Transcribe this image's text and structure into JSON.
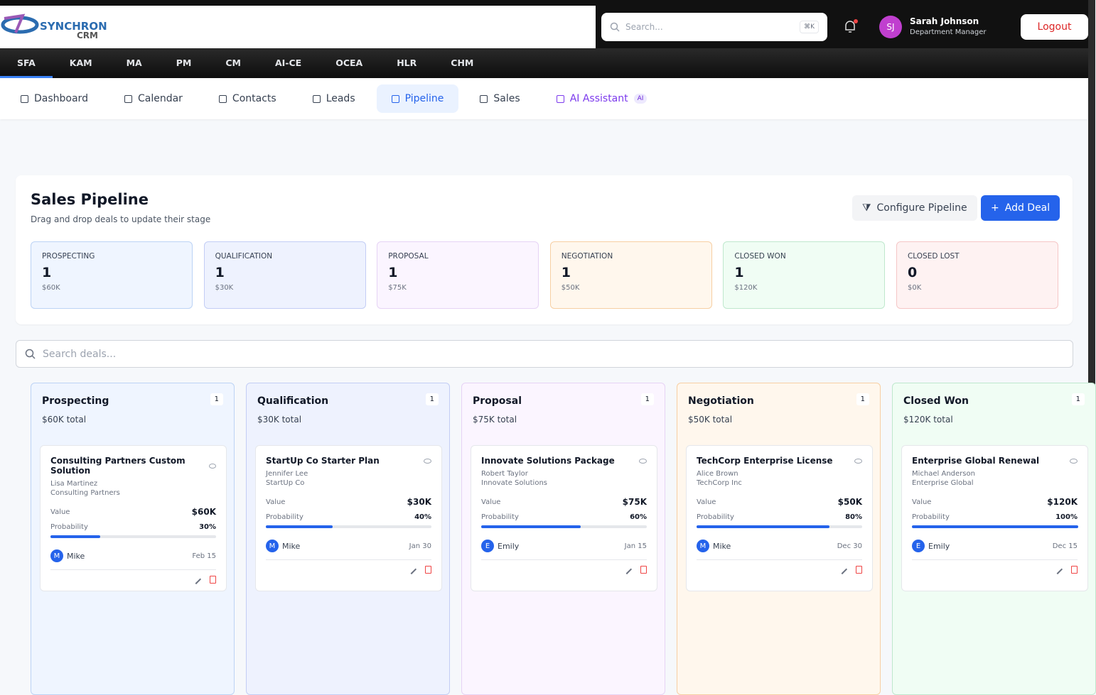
{
  "header": {
    "logo_text": "SYNCHRON",
    "logo_sub": "CRM",
    "search_placeholder": "Search...",
    "shortcut": "⌘K",
    "user_initials": "SJ",
    "user_name": "Sarah Johnson",
    "user_role": "Department Manager",
    "logout": "Logout"
  },
  "modules": [
    "SFA",
    "KAM",
    "MA",
    "PM",
    "CM",
    "AI-CE",
    "OCEA",
    "HLR",
    "CHM"
  ],
  "tabs": [
    "Dashboard",
    "Calendar",
    "Contacts",
    "Leads",
    "Pipeline",
    "Sales",
    "AI Assistant"
  ],
  "ai_badge": "AI",
  "page": {
    "title": "Sales Pipeline",
    "subtitle": "Drag and drop deals to update their stage",
    "configure": "Configure Pipeline",
    "add": "Add Deal",
    "search_placeholder": "Search deals..."
  },
  "stats": [
    {
      "label": "PROSPECTING",
      "count": 1,
      "value": "$60K"
    },
    {
      "label": "QUALIFICATION",
      "count": 1,
      "value": "$30K"
    },
    {
      "label": "PROPOSAL",
      "count": 1,
      "value": "$75K"
    },
    {
      "label": "NEGOTIATION",
      "count": 1,
      "value": "$50K"
    },
    {
      "label": "CLOSED WON",
      "count": 1,
      "value": "$120K"
    },
    {
      "label": "CLOSED LOST",
      "count": 0,
      "value": "$0K"
    }
  ],
  "columns": [
    {
      "name": "Prospecting",
      "count": 1,
      "total": "$60K total",
      "deals": [
        {
          "title": "Consulting Partners Custom Solution",
          "contact": "Lisa Martinez",
          "company": "Consulting Partners",
          "value_label": "Value",
          "value": "$60K",
          "probability_label": "Probability",
          "probability": 30,
          "probability_text": "30%",
          "owner_initial": "M",
          "owner": "Mike",
          "date": "Feb 15"
        }
      ]
    },
    {
      "name": "Qualification",
      "count": 1,
      "total": "$30K total",
      "deals": [
        {
          "title": "StartUp Co Starter Plan",
          "contact": "Jennifer Lee",
          "company": "StartUp Co",
          "value_label": "Value",
          "value": "$30K",
          "probability_label": "Probability",
          "probability": 40,
          "probability_text": "40%",
          "owner_initial": "M",
          "owner": "Mike",
          "date": "Jan 30"
        }
      ]
    },
    {
      "name": "Proposal",
      "count": 1,
      "total": "$75K total",
      "deals": [
        {
          "title": "Innovate Solutions Package",
          "contact": "Robert Taylor",
          "company": "Innovate Solutions",
          "value_label": "Value",
          "value": "$75K",
          "probability_label": "Probability",
          "probability": 60,
          "probability_text": "60%",
          "owner_initial": "E",
          "owner": "Emily",
          "date": "Jan 15"
        }
      ]
    },
    {
      "name": "Negotiation",
      "count": 1,
      "total": "$50K total",
      "deals": [
        {
          "title": "TechCorp Enterprise License",
          "contact": "Alice Brown",
          "company": "TechCorp Inc",
          "value_label": "Value",
          "value": "$50K",
          "probability_label": "Probability",
          "probability": 80,
          "probability_text": "80%",
          "owner_initial": "M",
          "owner": "Mike",
          "date": "Dec 30"
        }
      ]
    },
    {
      "name": "Closed Won",
      "count": 1,
      "total": "$120K total",
      "deals": [
        {
          "title": "Enterprise Global Renewal",
          "contact": "Michael Anderson",
          "company": "Enterprise Global",
          "value_label": "Value",
          "value": "$120K",
          "probability_label": "Probability",
          "probability": 100,
          "probability_text": "100%",
          "owner_initial": "E",
          "owner": "Emily",
          "date": "Dec 15"
        }
      ]
    }
  ]
}
